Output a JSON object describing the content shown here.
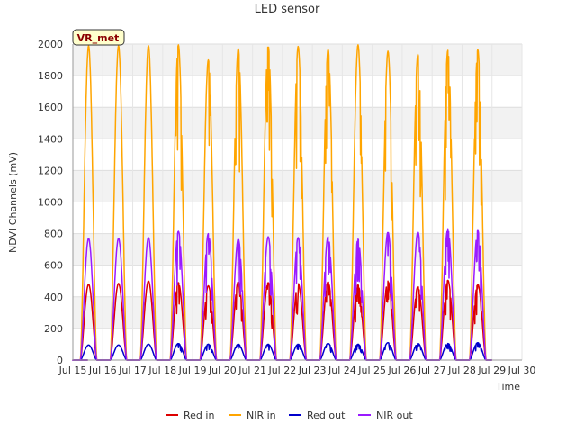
{
  "chart_data": {
    "type": "line",
    "title": "LED sensor",
    "xlabel": "Time",
    "ylabel": "NDVI Channels (mV)",
    "ylim": [
      0,
      2000
    ],
    "yticks": [
      0,
      200,
      400,
      600,
      800,
      1000,
      1200,
      1400,
      1600,
      1800,
      2000
    ],
    "xlim": [
      15,
      30
    ],
    "xticks": [
      {
        "value": 15,
        "label": "Jul 15"
      },
      {
        "value": 16,
        "label": "Jul 16"
      },
      {
        "value": 17,
        "label": "Jul 17"
      },
      {
        "value": 18,
        "label": "Jul 18"
      },
      {
        "value": 19,
        "label": "Jul 19"
      },
      {
        "value": 20,
        "label": "Jul 20"
      },
      {
        "value": 21,
        "label": "Jul 21"
      },
      {
        "value": 22,
        "label": "Jul 22"
      },
      {
        "value": 23,
        "label": "Jul 23"
      },
      {
        "value": 24,
        "label": "Jul 24"
      },
      {
        "value": 25,
        "label": "Jul 25"
      },
      {
        "value": 26,
        "label": "Jul 26"
      },
      {
        "value": 27,
        "label": "Jul 27"
      },
      {
        "value": 28,
        "label": "Jul 28"
      },
      {
        "value": 29,
        "label": "Jul 29"
      },
      {
        "value": 30,
        "label": "Jul 30"
      }
    ],
    "badge": "VR_met",
    "legend_position": "bottom",
    "day_start": 15.5,
    "day_end": 29.0,
    "daylight": [
      0.25,
      0.8
    ],
    "series": [
      {
        "name": "Red in",
        "color": "#dd0000",
        "daily_peaks": [
          480,
          485,
          500,
          490,
          470,
          495,
          490,
          485,
          495,
          475,
          500,
          465,
          505,
          480
        ]
      },
      {
        "name": "NIR in",
        "color": "#ffa500",
        "daily_peaks": [
          1990,
          1990,
          1990,
          1995,
          1900,
          1970,
          1990,
          1985,
          1965,
          1995,
          1955,
          1935,
          1960,
          1965
        ]
      },
      {
        "name": "Red out",
        "color": "#0000cc",
        "daily_peaks": [
          95,
          95,
          100,
          105,
          100,
          100,
          100,
          100,
          105,
          100,
          110,
          105,
          105,
          110
        ]
      },
      {
        "name": "NIR out",
        "color": "#9a1aff",
        "daily_peaks": [
          770,
          770,
          775,
          815,
          800,
          765,
          780,
          775,
          780,
          765,
          810,
          810,
          830,
          820
        ]
      }
    ]
  }
}
